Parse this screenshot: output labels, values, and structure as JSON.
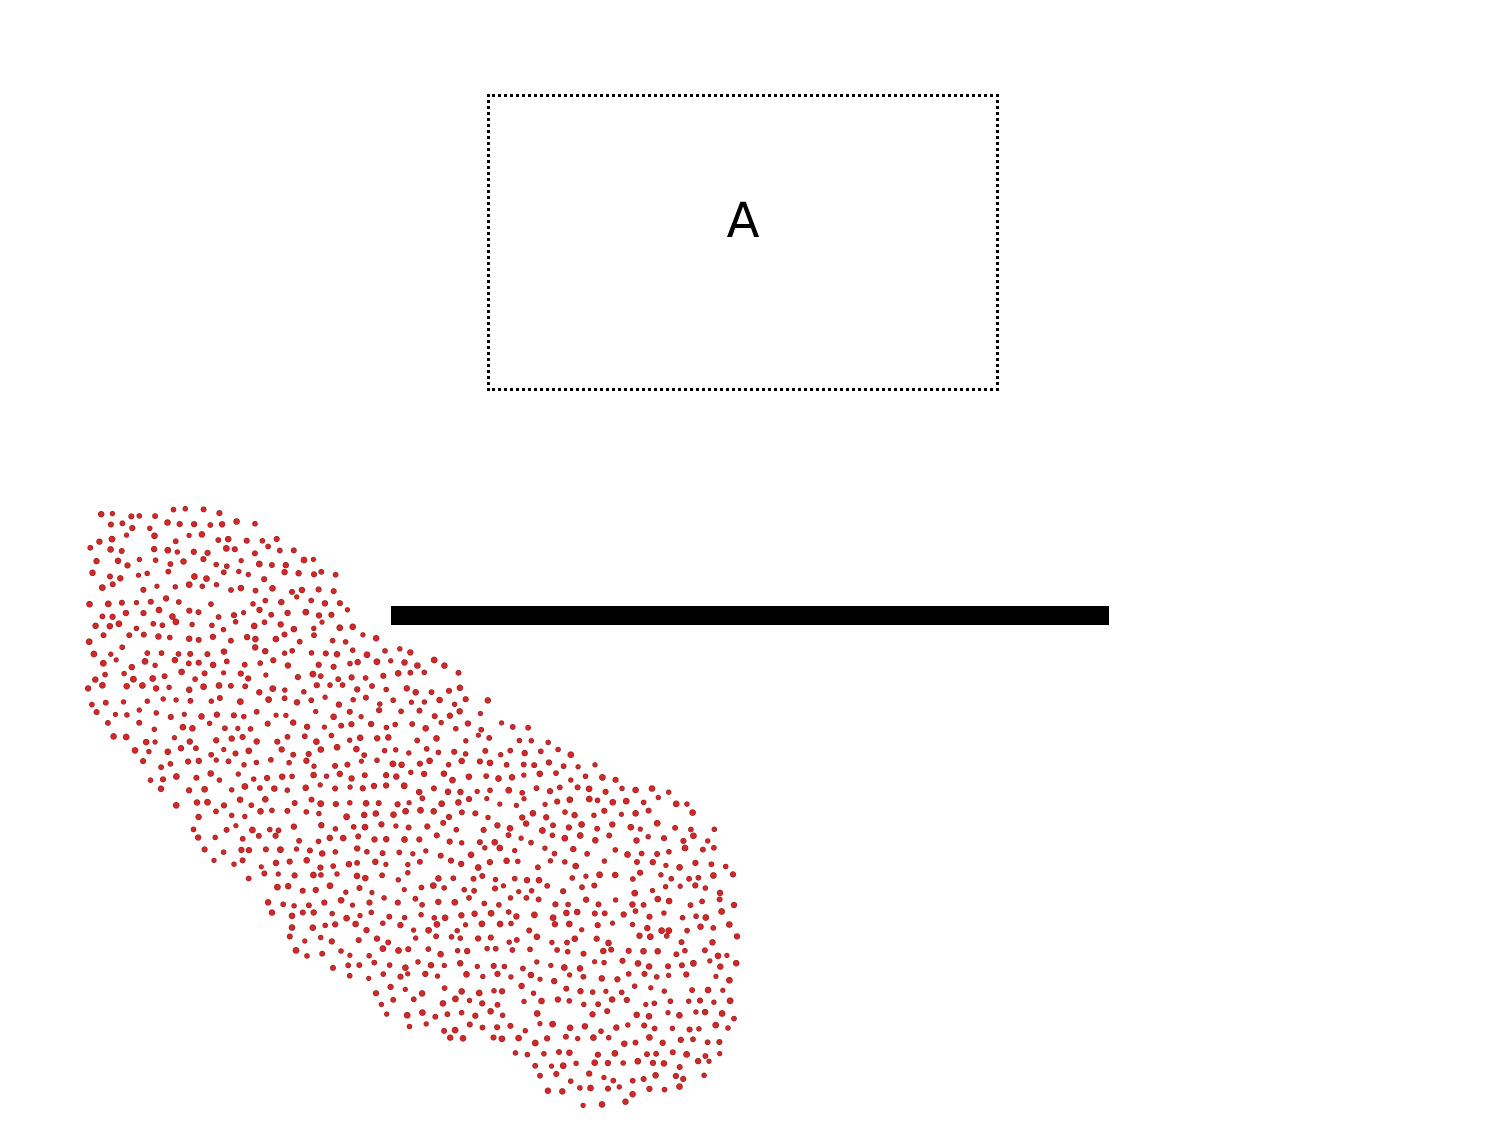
{
  "box": {
    "label": "A"
  },
  "colors": {
    "dot": "#d62728",
    "dot_edge": "#8a1a1a",
    "line": "#000000",
    "background": "#ffffff"
  }
}
